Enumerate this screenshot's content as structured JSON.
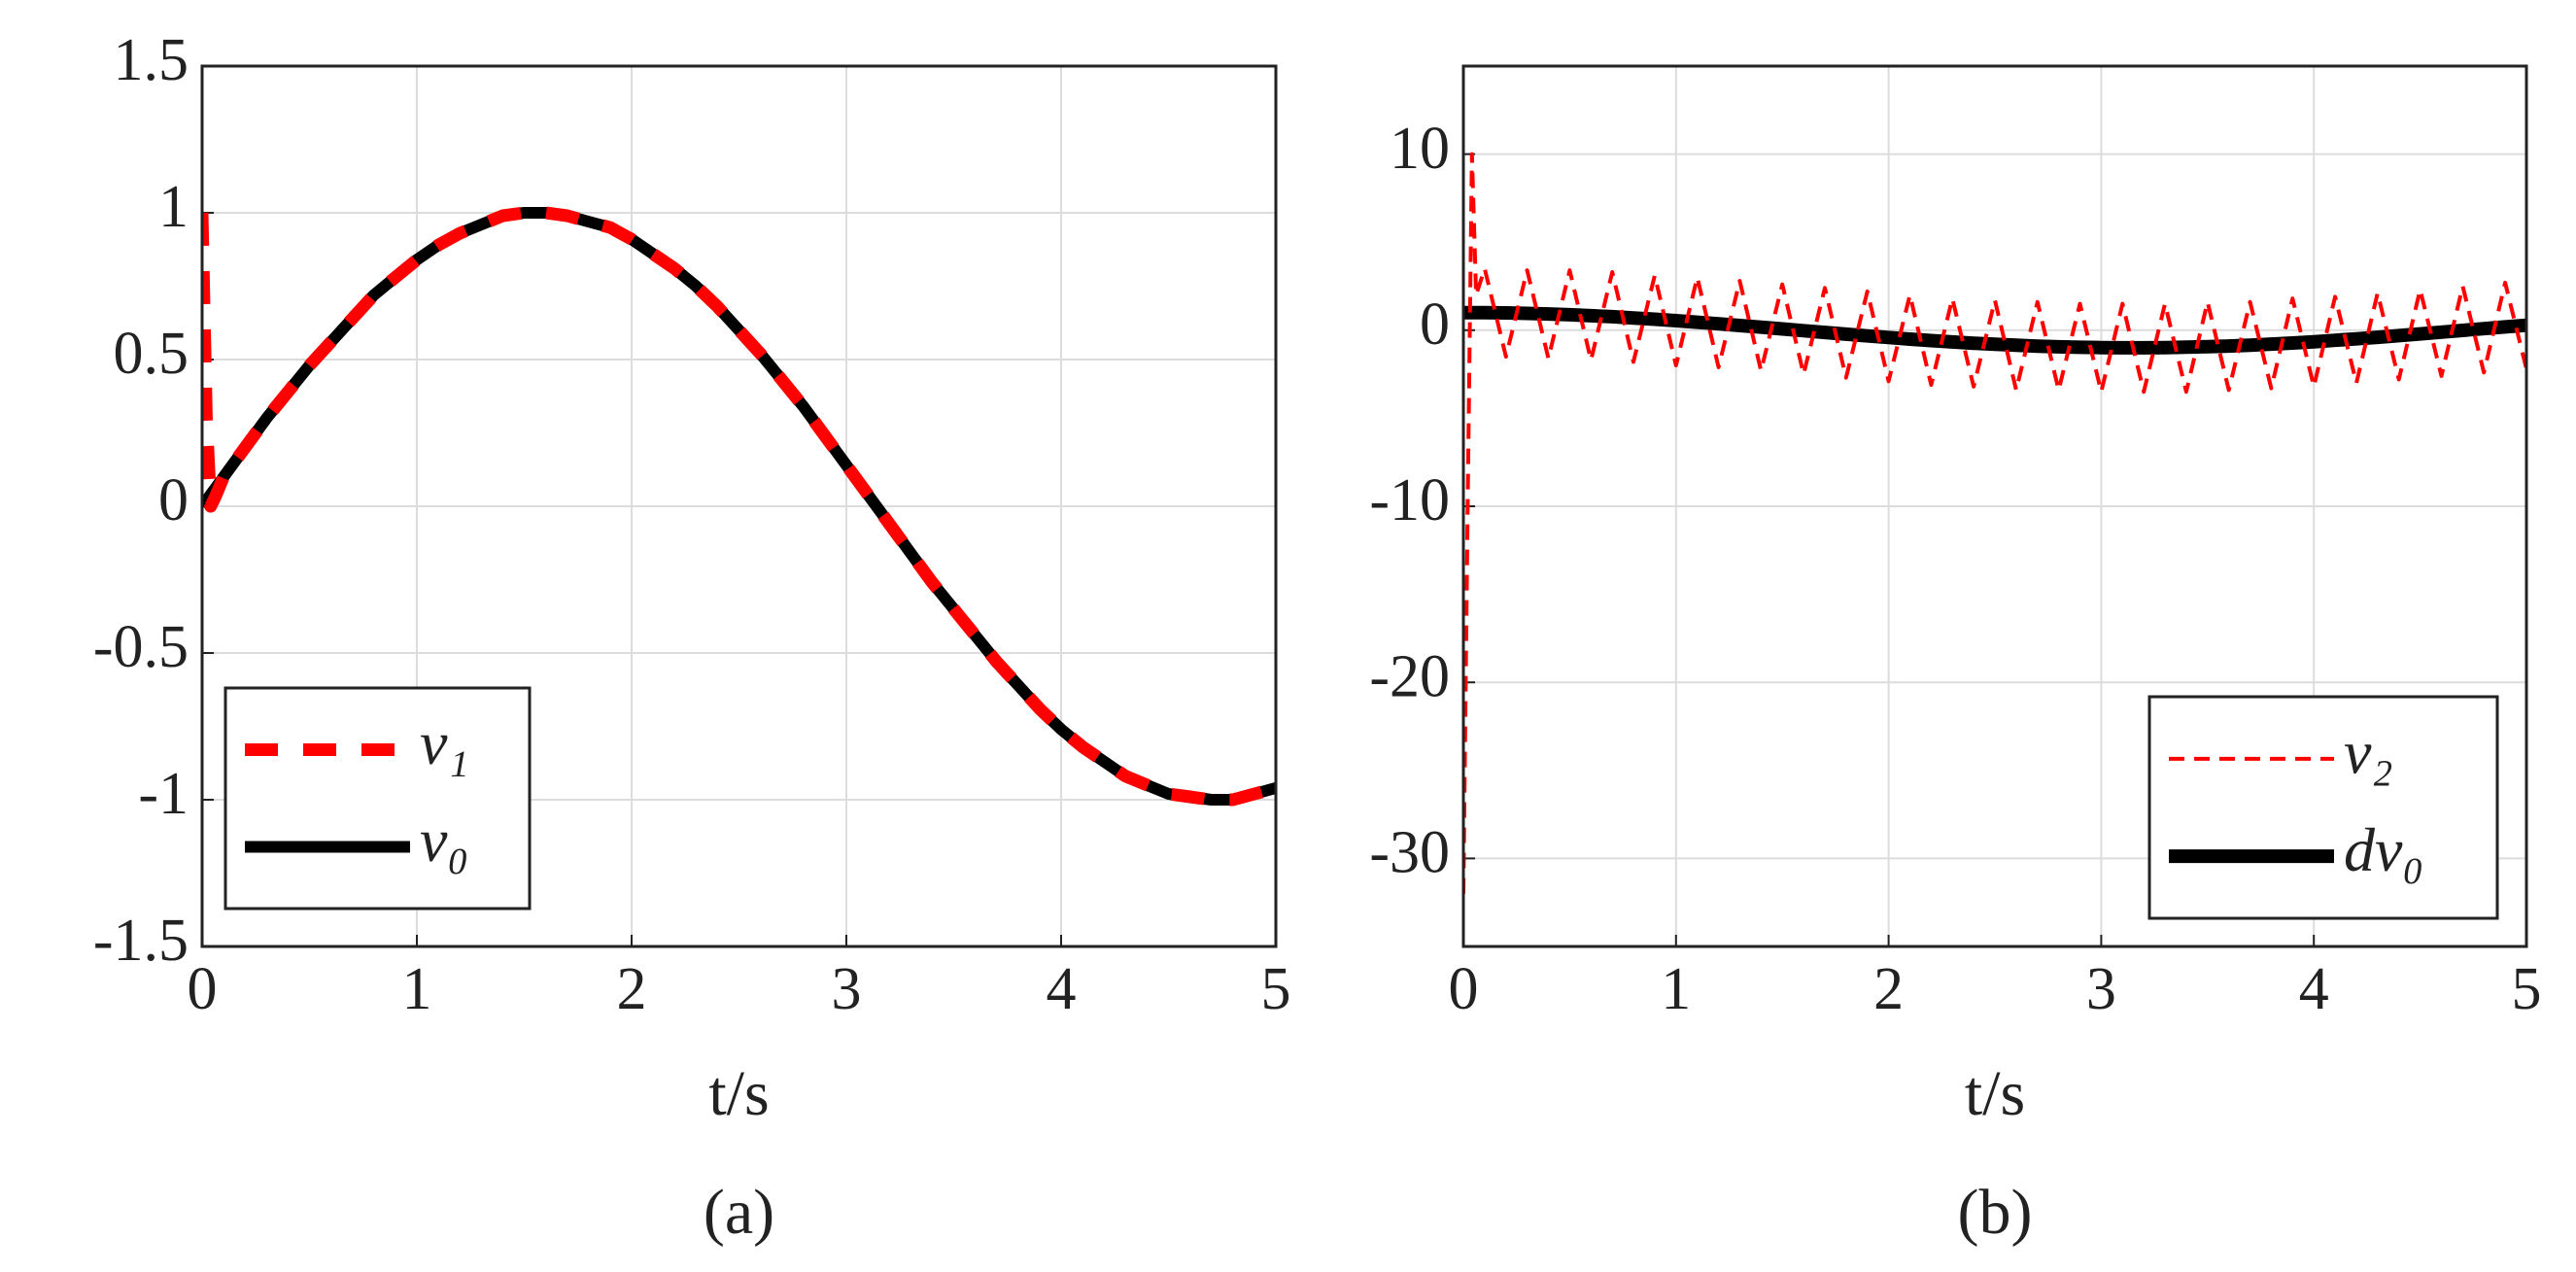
{
  "chart_data": [
    {
      "type": "line",
      "xlabel": "t/s",
      "caption": "(a)",
      "x": [
        0,
        0.02,
        0.04,
        0.06,
        0.1,
        0.2,
        0.3,
        0.4,
        0.5,
        0.6,
        0.7,
        0.8,
        0.9,
        1.0,
        1.1,
        1.2,
        1.3,
        1.4,
        1.5,
        1.6,
        1.7,
        1.8,
        1.9,
        2.0,
        2.1,
        2.2,
        2.3,
        2.4,
        2.5,
        2.6,
        2.7,
        2.8,
        2.9,
        3.0,
        3.1,
        3.2,
        3.3,
        3.4,
        3.5,
        3.6,
        3.7,
        3.8,
        3.9,
        4.0,
        4.1,
        4.2,
        4.3,
        4.4,
        4.5,
        4.6,
        4.7,
        4.8,
        4.9,
        5.0
      ],
      "series": [
        {
          "name": "v₁",
          "color": "#ff0000",
          "linestyle": "dashed",
          "values": [
            1,
            0.3,
            0,
            0.03,
            0.1,
            0.2,
            0.3,
            0.39,
            0.48,
            0.56,
            0.64,
            0.72,
            0.78,
            0.84,
            0.89,
            0.93,
            0.96,
            0.99,
            1.0,
            1.0,
            0.99,
            0.97,
            0.95,
            0.91,
            0.86,
            0.81,
            0.75,
            0.68,
            0.6,
            0.52,
            0.43,
            0.34,
            0.24,
            0.14,
            0.04,
            -0.06,
            -0.16,
            -0.26,
            -0.35,
            -0.44,
            -0.53,
            -0.61,
            -0.69,
            -0.76,
            -0.82,
            -0.87,
            -0.92,
            -0.95,
            -0.98,
            -0.99,
            -1.0,
            -1.0,
            -0.98,
            -0.96
          ]
        },
        {
          "name": "v₀",
          "color": "#000000",
          "linestyle": "solid",
          "values": [
            0,
            0.02,
            0.04,
            0.06,
            0.1,
            0.2,
            0.3,
            0.39,
            0.48,
            0.56,
            0.64,
            0.72,
            0.78,
            0.84,
            0.89,
            0.93,
            0.96,
            0.99,
            1.0,
            1.0,
            0.99,
            0.97,
            0.95,
            0.91,
            0.86,
            0.81,
            0.75,
            0.68,
            0.6,
            0.52,
            0.43,
            0.34,
            0.24,
            0.14,
            0.04,
            -0.06,
            -0.16,
            -0.26,
            -0.35,
            -0.44,
            -0.53,
            -0.61,
            -0.69,
            -0.76,
            -0.82,
            -0.87,
            -0.92,
            -0.95,
            -0.98,
            -0.99,
            -1.0,
            -1.0,
            -0.98,
            -0.96
          ]
        }
      ],
      "xlim": [
        0,
        5
      ],
      "xticks": [
        0,
        1,
        2,
        3,
        4,
        5
      ],
      "ylim": [
        -1.5,
        1.5
      ],
      "yticks": [
        -1.5,
        -1,
        -0.5,
        0,
        0.5,
        1,
        1.5
      ],
      "grid": true,
      "legend": "lower left"
    },
    {
      "type": "line",
      "xlabel": "t/s",
      "caption": "(b)",
      "x": [
        0,
        0.02,
        0.04,
        0.06,
        0.1,
        0.2,
        0.3,
        0.4,
        0.5,
        0.6,
        0.7,
        0.8,
        0.9,
        1.0,
        1.1,
        1.2,
        1.3,
        1.4,
        1.5,
        1.6,
        1.7,
        1.8,
        1.9,
        2.0,
        2.1,
        2.2,
        2.3,
        2.4,
        2.5,
        2.6,
        2.7,
        2.8,
        2.9,
        3.0,
        3.1,
        3.2,
        3.3,
        3.4,
        3.5,
        3.6,
        3.7,
        3.8,
        3.9,
        4.0,
        4.1,
        4.2,
        4.3,
        4.4,
        4.5,
        4.6,
        4.7,
        4.8,
        4.9,
        5.0
      ],
      "series": [
        {
          "name": "v₂",
          "color": "#ff0000",
          "linestyle": "dashed",
          "values": [
            -32,
            -10,
            10,
            2,
            3.5,
            -1.5,
            3.4,
            -1.6,
            3.4,
            -1.7,
            3.3,
            -1.8,
            3.1,
            -2.0,
            3.0,
            -2.1,
            2.8,
            -2.3,
            2.6,
            -2.5,
            2.4,
            -2.7,
            2.2,
            -2.9,
            2.0,
            -3.1,
            1.8,
            -3.2,
            1.7,
            -3.4,
            1.6,
            -3.4,
            1.5,
            -3.5,
            1.5,
            -3.5,
            1.5,
            -3.5,
            1.6,
            -3.4,
            1.6,
            -3.3,
            1.8,
            -3.2,
            1.9,
            -3.0,
            2.1,
            -2.8,
            2.3,
            -2.6,
            2.5,
            -2.4,
            2.7,
            -2.2
          ]
        },
        {
          "name": "dv₀",
          "color": "#000000",
          "linestyle": "solid",
          "values": [
            1,
            1,
            1,
            1,
            0.995,
            0.98,
            0.955,
            0.921,
            0.878,
            0.825,
            0.765,
            0.697,
            0.622,
            0.54,
            0.454,
            0.362,
            0.267,
            0.17,
            0.071,
            -0.029,
            -0.129,
            -0.227,
            -0.323,
            -0.416,
            -0.505,
            -0.589,
            -0.666,
            -0.737,
            -0.801,
            -0.857,
            -0.904,
            -0.942,
            -0.971,
            -0.99,
            -0.999,
            -0.998,
            -0.987,
            -0.967,
            -0.936,
            -0.897,
            -0.848,
            -0.791,
            -0.726,
            -0.654,
            -0.575,
            -0.49,
            -0.401,
            -0.307,
            -0.211,
            -0.112,
            -0.013,
            0.087,
            0.187,
            0.284
          ]
        }
      ],
      "xlim": [
        0,
        5
      ],
      "xticks": [
        0,
        1,
        2,
        3,
        4,
        5
      ],
      "ylim": [
        -35,
        15
      ],
      "yticks": [
        -30,
        -20,
        -10,
        0,
        10
      ],
      "grid": true,
      "legend": "lower right"
    }
  ]
}
